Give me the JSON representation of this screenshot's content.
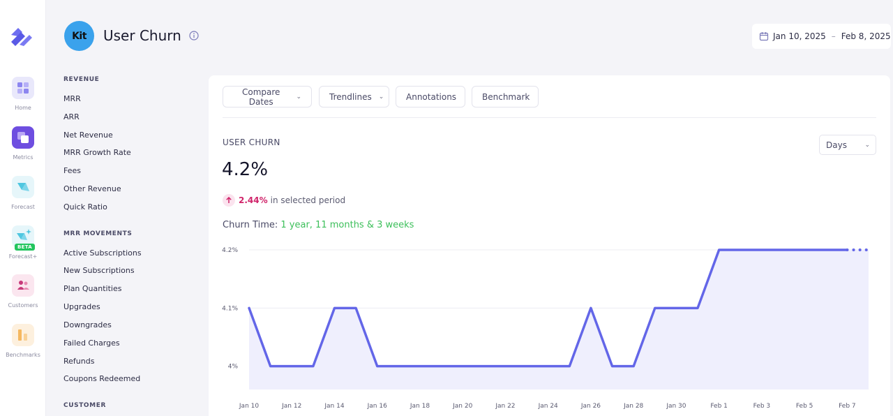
{
  "rail": {
    "items": [
      {
        "label": "Home",
        "icon": "grid-icon",
        "color": "#e9e8fb"
      },
      {
        "label": "Metrics",
        "icon": "metrics-icon",
        "color": "#6e4ee0"
      },
      {
        "label": "Forecast",
        "icon": "forecast-icon",
        "color": "#e6f6fa"
      },
      {
        "label": "Forecast+",
        "icon": "forecast-plus-icon",
        "color": "#e6f6fa",
        "badge": "BETA"
      },
      {
        "label": "Customers",
        "icon": "customers-icon",
        "color": "#fbe6ef"
      },
      {
        "label": "Benchmarks",
        "icon": "benchmarks-icon",
        "color": "#fdf0de"
      }
    ]
  },
  "header": {
    "brand": "Kit",
    "title": "User Churn",
    "date_start": "Jan 10, 2025",
    "date_sep": "–",
    "date_end": "Feb 8, 2025"
  },
  "nav": {
    "sections": [
      {
        "title": "REVENUE",
        "items": [
          "MRR",
          "ARR",
          "Net Revenue",
          "MRR Growth Rate",
          "Fees",
          "Other Revenue",
          "Quick Ratio"
        ]
      },
      {
        "title": "MRR MOVEMENTS",
        "items": [
          "Active Subscriptions",
          "New Subscriptions",
          "Plan Quantities",
          "Upgrades",
          "Downgrades",
          "Failed Charges",
          "Refunds",
          "Coupons Redeemed"
        ]
      },
      {
        "title": "CUSTOMER",
        "items": []
      }
    ]
  },
  "toolbar": {
    "compare": "Compare Dates",
    "trendlines": "Trendlines",
    "annotations": "Annotations",
    "benchmark": "Benchmark"
  },
  "metric": {
    "label": "USER CHURN",
    "value": "4.2%",
    "change_pct": "2.44%",
    "change_text": "in selected period",
    "churn_time_label": "Churn Time:",
    "churn_time_value": "1 year, 11 months & 3 weeks",
    "interval": "Days"
  },
  "colors": {
    "line": "#6366e8",
    "area": "#efeffd",
    "accent": "#6e4ee0",
    "positive": "#3cbf5a",
    "negative": "#d0246a"
  },
  "chart_data": {
    "type": "line",
    "x": [
      "Jan 10",
      "Jan 11",
      "Jan 12",
      "Jan 13",
      "Jan 14",
      "Jan 15",
      "Jan 16",
      "Jan 17",
      "Jan 18",
      "Jan 19",
      "Jan 20",
      "Jan 21",
      "Jan 22",
      "Jan 23",
      "Jan 24",
      "Jan 25",
      "Jan 26",
      "Jan 27",
      "Jan 28",
      "Jan 29",
      "Jan 30",
      "Jan 31",
      "Feb 1",
      "Feb 2",
      "Feb 3",
      "Feb 4",
      "Feb 5",
      "Feb 6",
      "Feb 7",
      "Feb 8"
    ],
    "series": [
      {
        "values": [
          4.1,
          4.0,
          4.0,
          4.0,
          4.1,
          4.1,
          4.0,
          4.0,
          4.0,
          4.0,
          4.0,
          4.0,
          4.0,
          4.0,
          4.0,
          4.0,
          4.1,
          4.0,
          4.0,
          4.1,
          4.1,
          4.1,
          4.2,
          4.2,
          4.2,
          4.2,
          4.2,
          4.2,
          4.2,
          4.2
        ]
      }
    ],
    "x_tick_labels": [
      "Jan 10",
      "Jan 12",
      "Jan 14",
      "Jan 16",
      "Jan 18",
      "Jan 20",
      "Jan 22",
      "Jan 24",
      "Jan 26",
      "Jan 28",
      "Jan 30",
      "Feb 1",
      "Feb 3",
      "Feb 5",
      "Feb 7"
    ],
    "y_ticks": [
      4.0,
      4.1,
      4.2
    ],
    "y_tick_labels": [
      "4%",
      "4.1%",
      "4.2%"
    ],
    "ylim": [
      3.96,
      4.2
    ],
    "grid": true,
    "incomplete_last_point": true
  }
}
